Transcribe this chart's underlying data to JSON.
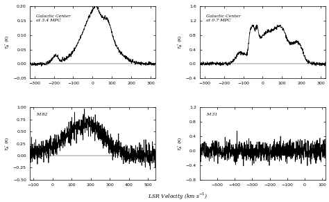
{
  "panel_tl": {
    "label": "Galactic Center\nat 3.4 MPC",
    "xlim": [
      -325,
      325
    ],
    "ylim": [
      -0.05,
      0.2
    ],
    "yticks": [
      -0.05,
      0.0,
      0.05,
      0.1,
      0.15,
      0.2
    ],
    "xticks": [
      -300,
      -200,
      -100,
      0,
      100,
      200,
      300
    ]
  },
  "panel_tr": {
    "label": "Galactic Center\nat 0.7 MPC",
    "xlim": [
      -325,
      325
    ],
    "ylim": [
      -0.4,
      1.6
    ],
    "yticks": [
      -0.4,
      0.0,
      0.4,
      0.8,
      1.2,
      1.6
    ],
    "xticks": [
      -300,
      -200,
      -100,
      0,
      100,
      200,
      300
    ]
  },
  "panel_bl": {
    "label": "M 82",
    "xlim": [
      -120,
      540
    ],
    "ylim": [
      -0.5,
      1.0
    ],
    "yticks": [
      -0.5,
      -0.25,
      0.0,
      0.25,
      0.5,
      0.75,
      1.0
    ],
    "xticks": [
      -100,
      0,
      100,
      200,
      300,
      400,
      500
    ]
  },
  "panel_br": {
    "label": "M 31",
    "xlim": [
      -600,
      120
    ],
    "ylim": [
      -0.8,
      1.2
    ],
    "yticks": [
      -0.8,
      -0.4,
      0.0,
      0.4,
      0.8,
      1.2
    ],
    "xticks": [
      -500,
      -400,
      -300,
      -200,
      -100,
      0,
      100
    ]
  },
  "xlabel": "LSR Velocity (km s$^{-1}$)",
  "line_color": "black",
  "bg_color": "white",
  "seed": 42
}
